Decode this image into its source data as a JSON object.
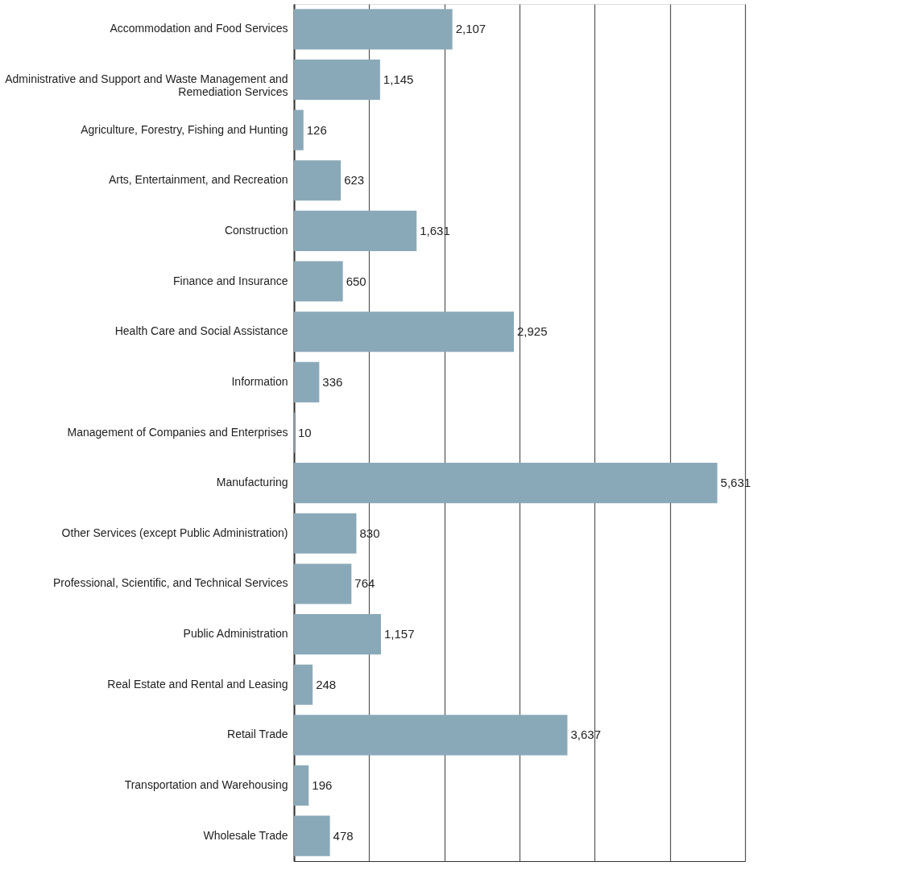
{
  "chart_data": {
    "type": "bar",
    "orientation": "horizontal",
    "categories": [
      "Accommodation and Food Services",
      "Administrative and Support and Waste Management and Remediation Services",
      "Agriculture, Forestry, Fishing and Hunting",
      "Arts, Entertainment, and Recreation",
      "Construction",
      "Finance and Insurance",
      "Health Care and Social Assistance",
      "Information",
      "Management of Companies and Enterprises",
      "Manufacturing",
      "Other Services (except Public Administration)",
      "Professional, Scientific, and Technical Services",
      "Public Administration",
      "Real Estate and Rental and Leasing",
      "Retail Trade",
      "Transportation and Warehousing",
      "Wholesale Trade"
    ],
    "values": [
      2107,
      1145,
      126,
      623,
      1631,
      650,
      2925,
      336,
      10,
      5631,
      830,
      764,
      1157,
      248,
      3637,
      196,
      478
    ],
    "color": "#8aa9b8",
    "xlim": [
      0,
      6000
    ],
    "xticks": [
      {
        "value": 0,
        "label": null
      },
      {
        "value": 1000,
        "label": null
      },
      {
        "value": 2000,
        "label": null
      },
      {
        "value": 3000,
        "label": null
      },
      {
        "value": 4000,
        "label": null
      },
      {
        "value": 5000,
        "label": null
      },
      {
        "value": 6000,
        "label": null
      }
    ],
    "value_labels": [
      "2,107",
      "1,145",
      "126",
      "623",
      "1,631",
      "650",
      "2,925",
      "336",
      "10",
      "5,631",
      "830",
      "764",
      "1,157",
      "248",
      "3,637",
      "196",
      "478"
    ],
    "grid": "x",
    "tick_labels": "y"
  }
}
